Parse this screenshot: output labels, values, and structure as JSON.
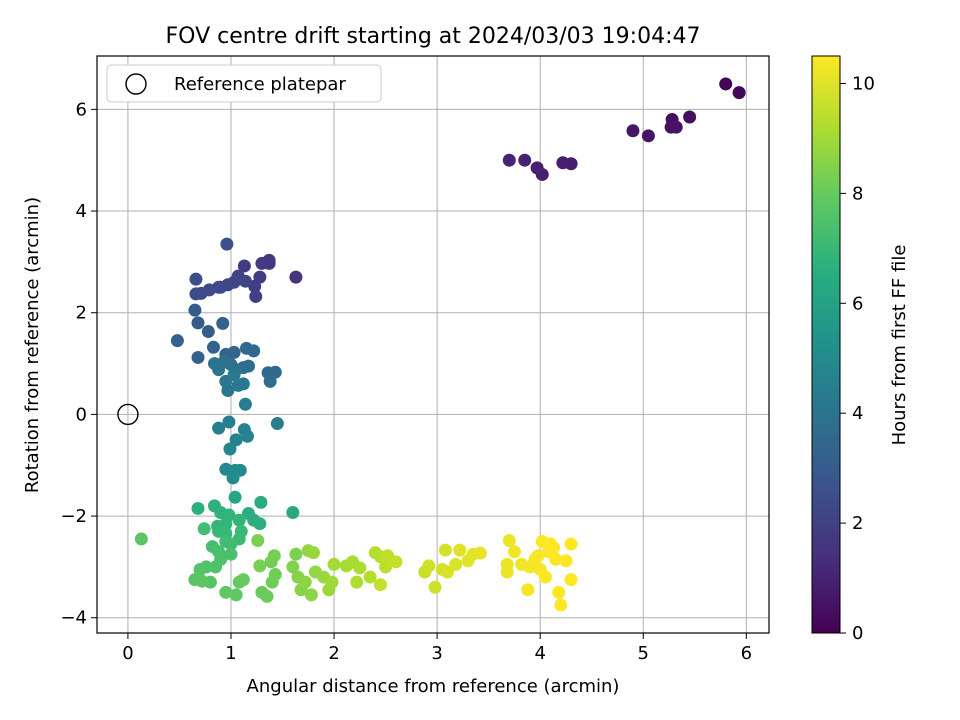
{
  "chart_data": {
    "type": "scatter",
    "title": "FOV centre drift starting at 2024/03/03 19:04:47",
    "xlabel": "Angular distance from reference (arcmin)",
    "ylabel": "Rotation from reference (arcmin)",
    "xlim": [
      -0.3,
      6.22
    ],
    "ylim": [
      -4.3,
      7.05
    ],
    "xticks": [
      0,
      1,
      2,
      3,
      4,
      5,
      6
    ],
    "yticks": [
      -4,
      -2,
      0,
      2,
      4,
      6
    ],
    "grid": true,
    "legend": {
      "placement": "top-left",
      "entries": [
        "Reference platepar"
      ]
    },
    "reference_point": {
      "x": 0,
      "y": 0,
      "label": "Reference platepar"
    },
    "colorbar": {
      "label": "Hours from first FF file",
      "colormap": "viridis",
      "range": [
        0,
        10.5
      ],
      "ticks": [
        0,
        2,
        4,
        6,
        8,
        10
      ]
    },
    "series": [
      {
        "columns": [
          "x",
          "y",
          "hours"
        ],
        "points": [
          [
            5.8,
            6.5,
            0.1
          ],
          [
            5.93,
            6.33,
            0.2
          ],
          [
            5.45,
            5.85,
            0.4
          ],
          [
            5.28,
            5.8,
            0.45
          ],
          [
            5.27,
            5.65,
            0.5
          ],
          [
            5.32,
            5.65,
            0.55
          ],
          [
            5.05,
            5.48,
            0.6
          ],
          [
            4.9,
            5.58,
            0.65
          ],
          [
            4.3,
            4.93,
            0.8
          ],
          [
            4.22,
            4.95,
            0.85
          ],
          [
            4.02,
            4.72,
            0.9
          ],
          [
            3.97,
            4.85,
            0.95
          ],
          [
            3.85,
            5.0,
            1.0
          ],
          [
            3.7,
            5.0,
            1.05
          ],
          [
            1.63,
            2.7,
            1.6
          ],
          [
            1.37,
            3.03,
            1.7
          ],
          [
            1.37,
            2.97,
            1.75
          ],
          [
            1.3,
            2.97,
            1.8
          ],
          [
            1.28,
            2.7,
            1.85
          ],
          [
            1.13,
            2.92,
            1.9
          ],
          [
            1.23,
            2.52,
            1.95
          ],
          [
            1.24,
            2.32,
            2.0
          ],
          [
            1.07,
            2.72,
            2.05
          ],
          [
            1.14,
            2.62,
            2.1
          ],
          [
            1.03,
            2.6,
            2.15
          ],
          [
            0.97,
            2.55,
            2.2
          ],
          [
            0.88,
            2.5,
            2.25
          ],
          [
            0.9,
            2.5,
            2.3
          ],
          [
            0.79,
            2.45,
            2.35
          ],
          [
            0.71,
            2.38,
            2.4
          ],
          [
            0.66,
            2.37,
            2.45
          ],
          [
            0.66,
            2.66,
            2.5
          ],
          [
            0.96,
            3.35,
            2.55
          ],
          [
            0.65,
            2.05,
            3.0
          ],
          [
            0.68,
            1.8,
            3.05
          ],
          [
            0.78,
            1.63,
            3.1
          ],
          [
            0.92,
            1.79,
            3.15
          ],
          [
            0.68,
            1.12,
            3.2
          ],
          [
            0.48,
            1.45,
            3.25
          ],
          [
            0.83,
            1.32,
            3.3
          ],
          [
            0.95,
            1.18,
            3.35
          ],
          [
            1.03,
            1.22,
            3.4
          ],
          [
            1.15,
            1.3,
            3.45
          ],
          [
            1.22,
            1.25,
            3.5
          ],
          [
            1.36,
            0.82,
            3.6
          ],
          [
            1.43,
            0.83,
            3.65
          ],
          [
            1.38,
            0.65,
            3.7
          ],
          [
            1.17,
            0.95,
            3.75
          ],
          [
            1.12,
            0.92,
            3.8
          ],
          [
            1.05,
            0.88,
            3.85
          ],
          [
            1.0,
            0.98,
            3.9
          ],
          [
            0.93,
            1.03,
            3.95
          ],
          [
            0.88,
            0.88,
            4.0
          ],
          [
            0.84,
            1.0,
            4.05
          ],
          [
            0.95,
            0.65,
            4.1
          ],
          [
            0.97,
            0.47,
            4.15
          ],
          [
            1.07,
            0.57,
            4.2
          ],
          [
            1.12,
            0.6,
            4.25
          ],
          [
            1.03,
            0.78,
            4.3
          ],
          [
            1.14,
            0.2,
            4.35
          ],
          [
            1.45,
            -0.18,
            4.4
          ],
          [
            0.98,
            -0.15,
            4.5
          ],
          [
            0.88,
            -0.27,
            4.55
          ],
          [
            1.13,
            -0.3,
            4.6
          ],
          [
            1.16,
            -0.43,
            4.65
          ],
          [
            1.05,
            -0.5,
            4.7
          ],
          [
            0.99,
            -0.68,
            4.8
          ],
          [
            0.95,
            -1.08,
            4.9
          ],
          [
            1.04,
            -1.1,
            5.0
          ],
          [
            1.09,
            -1.1,
            5.05
          ],
          [
            1.02,
            -1.25,
            5.1
          ],
          [
            1.04,
            -1.63,
            6.2
          ],
          [
            1.6,
            -1.93,
            6.3
          ],
          [
            1.29,
            -1.73,
            6.4
          ],
          [
            1.17,
            -1.95,
            6.5
          ],
          [
            1.22,
            -2.08,
            6.55
          ],
          [
            1.28,
            -2.15,
            6.6
          ],
          [
            0.68,
            -1.85,
            6.65
          ],
          [
            0.84,
            -1.8,
            6.7
          ],
          [
            0.9,
            -1.93,
            6.75
          ],
          [
            0.98,
            -1.98,
            6.8
          ],
          [
            1.08,
            -2.08,
            6.85
          ],
          [
            0.95,
            -2.15,
            6.9
          ],
          [
            0.87,
            -2.2,
            6.95
          ],
          [
            0.88,
            -2.3,
            7.0
          ],
          [
            0.95,
            -2.35,
            7.05
          ],
          [
            1.1,
            -2.3,
            7.1
          ],
          [
            1.08,
            -2.45,
            7.15
          ],
          [
            0.95,
            -2.5,
            7.2
          ],
          [
            1.0,
            -2.55,
            7.25
          ],
          [
            0.74,
            -2.25,
            7.3
          ],
          [
            0.82,
            -2.6,
            7.35
          ],
          [
            0.88,
            -2.7,
            7.4
          ],
          [
            1.0,
            -2.75,
            7.45
          ],
          [
            0.9,
            -2.85,
            7.5
          ],
          [
            0.85,
            -3.0,
            7.55
          ],
          [
            0.76,
            -3.0,
            7.6
          ],
          [
            0.7,
            -3.05,
            7.65
          ],
          [
            0.8,
            -3.3,
            7.7
          ],
          [
            0.65,
            -3.25,
            7.75
          ],
          [
            0.72,
            -3.28,
            7.8
          ],
          [
            0.95,
            -3.5,
            7.85
          ],
          [
            1.05,
            -3.55,
            7.9
          ],
          [
            1.08,
            -3.3,
            7.95
          ],
          [
            1.12,
            -3.25,
            8.0
          ],
          [
            1.3,
            -3.5,
            8.05
          ],
          [
            1.35,
            -3.58,
            8.1
          ],
          [
            1.4,
            -3.3,
            8.15
          ],
          [
            1.43,
            -3.15,
            8.2
          ],
          [
            1.39,
            -2.9,
            8.25
          ],
          [
            1.42,
            -2.78,
            8.3
          ],
          [
            1.28,
            -2.98,
            8.35
          ],
          [
            1.26,
            -2.48,
            8.4
          ],
          [
            0.13,
            -2.45,
            7.8
          ],
          [
            1.63,
            -2.75,
            8.45
          ],
          [
            1.6,
            -3.0,
            8.5
          ],
          [
            1.65,
            -3.2,
            8.55
          ],
          [
            1.68,
            -3.45,
            8.6
          ],
          [
            1.72,
            -3.3,
            8.65
          ],
          [
            1.78,
            -3.55,
            8.7
          ],
          [
            1.82,
            -3.1,
            8.75
          ],
          [
            1.75,
            -2.68,
            8.8
          ],
          [
            1.8,
            -2.72,
            8.85
          ],
          [
            1.9,
            -3.2,
            8.9
          ],
          [
            1.95,
            -3.45,
            8.95
          ],
          [
            1.98,
            -3.3,
            9.0
          ],
          [
            2.0,
            -2.95,
            9.05
          ],
          [
            2.12,
            -2.98,
            9.1
          ],
          [
            2.18,
            -2.9,
            9.15
          ],
          [
            2.25,
            -3.02,
            9.2
          ],
          [
            2.22,
            -3.3,
            9.25
          ],
          [
            2.35,
            -3.2,
            9.3
          ],
          [
            2.4,
            -2.72,
            9.35
          ],
          [
            2.45,
            -2.8,
            9.4
          ],
          [
            2.5,
            -3.0,
            9.45
          ],
          [
            2.52,
            -2.78,
            9.5
          ],
          [
            2.45,
            -3.35,
            9.55
          ],
          [
            2.6,
            -2.9,
            9.6
          ],
          [
            2.88,
            -3.1,
            9.65
          ],
          [
            2.92,
            -2.98,
            9.7
          ],
          [
            2.98,
            -3.4,
            9.75
          ],
          [
            3.05,
            -3.05,
            9.8
          ],
          [
            3.08,
            -2.67,
            9.85
          ],
          [
            3.1,
            -3.1,
            9.9
          ],
          [
            3.18,
            -2.95,
            9.95
          ],
          [
            3.22,
            -2.67,
            10.0
          ],
          [
            3.3,
            -2.88,
            10.05
          ],
          [
            3.35,
            -2.75,
            10.1
          ],
          [
            3.42,
            -2.73,
            10.15
          ],
          [
            3.68,
            -2.95,
            10.2
          ],
          [
            3.7,
            -2.48,
            10.25
          ],
          [
            3.75,
            -2.7,
            10.3
          ],
          [
            3.82,
            -2.95,
            10.3
          ],
          [
            3.88,
            -3.45,
            10.35
          ],
          [
            3.9,
            -3.0,
            10.35
          ],
          [
            3.95,
            -2.85,
            10.4
          ],
          [
            3.98,
            -2.78,
            10.4
          ],
          [
            4.0,
            -3.05,
            10.4
          ],
          [
            4.02,
            -2.5,
            10.45
          ],
          [
            4.05,
            -3.2,
            10.45
          ],
          [
            4.08,
            -2.7,
            10.45
          ],
          [
            4.1,
            -2.55,
            10.5
          ],
          [
            4.13,
            -2.62,
            10.5
          ],
          [
            4.15,
            -2.85,
            10.5
          ],
          [
            4.18,
            -3.5,
            10.5
          ],
          [
            4.2,
            -3.75,
            10.5
          ],
          [
            4.25,
            -2.88,
            10.5
          ],
          [
            4.3,
            -3.25,
            10.5
          ],
          [
            4.3,
            -2.55,
            10.5
          ],
          [
            3.68,
            -3.1,
            10.2
          ]
        ]
      }
    ]
  }
}
